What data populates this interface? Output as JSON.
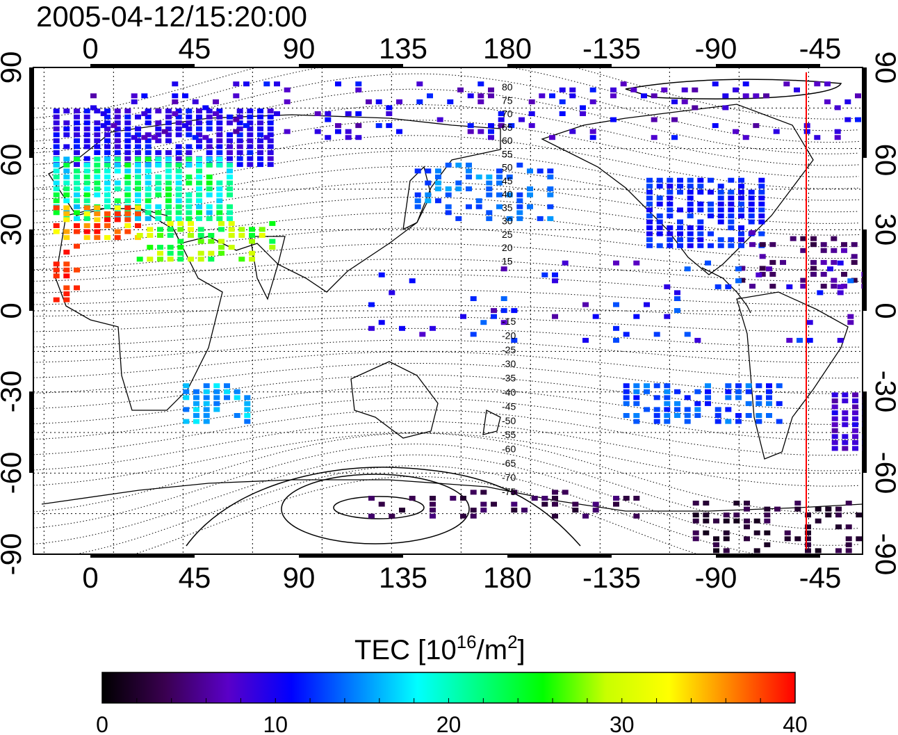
{
  "title": "2005-04-12/15:20:00",
  "map": {
    "x_ticks": [
      "0",
      "45",
      "90",
      "135",
      "180",
      "-135",
      "-90",
      "-45"
    ],
    "y_ticks": [
      "90",
      "60",
      "30",
      "0",
      "-30",
      "-60",
      "-90"
    ],
    "contour_labels": [
      "80",
      "75",
      "70",
      "65",
      "60",
      "55",
      "50",
      "45",
      "40",
      "35",
      "30",
      "25",
      "20",
      "15",
      "-15",
      "-20",
      "-25",
      "-30",
      "-35",
      "-40",
      "-45",
      "-50",
      "-55",
      "-60",
      "-65",
      "-70",
      "-75"
    ],
    "marker_color": "#ff0000"
  },
  "colorbar": {
    "label_main": "TEC  [10",
    "label_sup1": "16",
    "label_mid": "/m",
    "label_sup2": "2",
    "label_end": "]",
    "ticks": [
      "0",
      "10",
      "20",
      "30",
      "40"
    ],
    "range": [
      0,
      40
    ],
    "colors": [
      "#000000",
      "#3a0050",
      "#5a00c8",
      "#0000ff",
      "#0080ff",
      "#00ffff",
      "#00ff80",
      "#00ff00",
      "#c8ff00",
      "#ffff00",
      "#ff8000",
      "#ff0000"
    ]
  }
}
